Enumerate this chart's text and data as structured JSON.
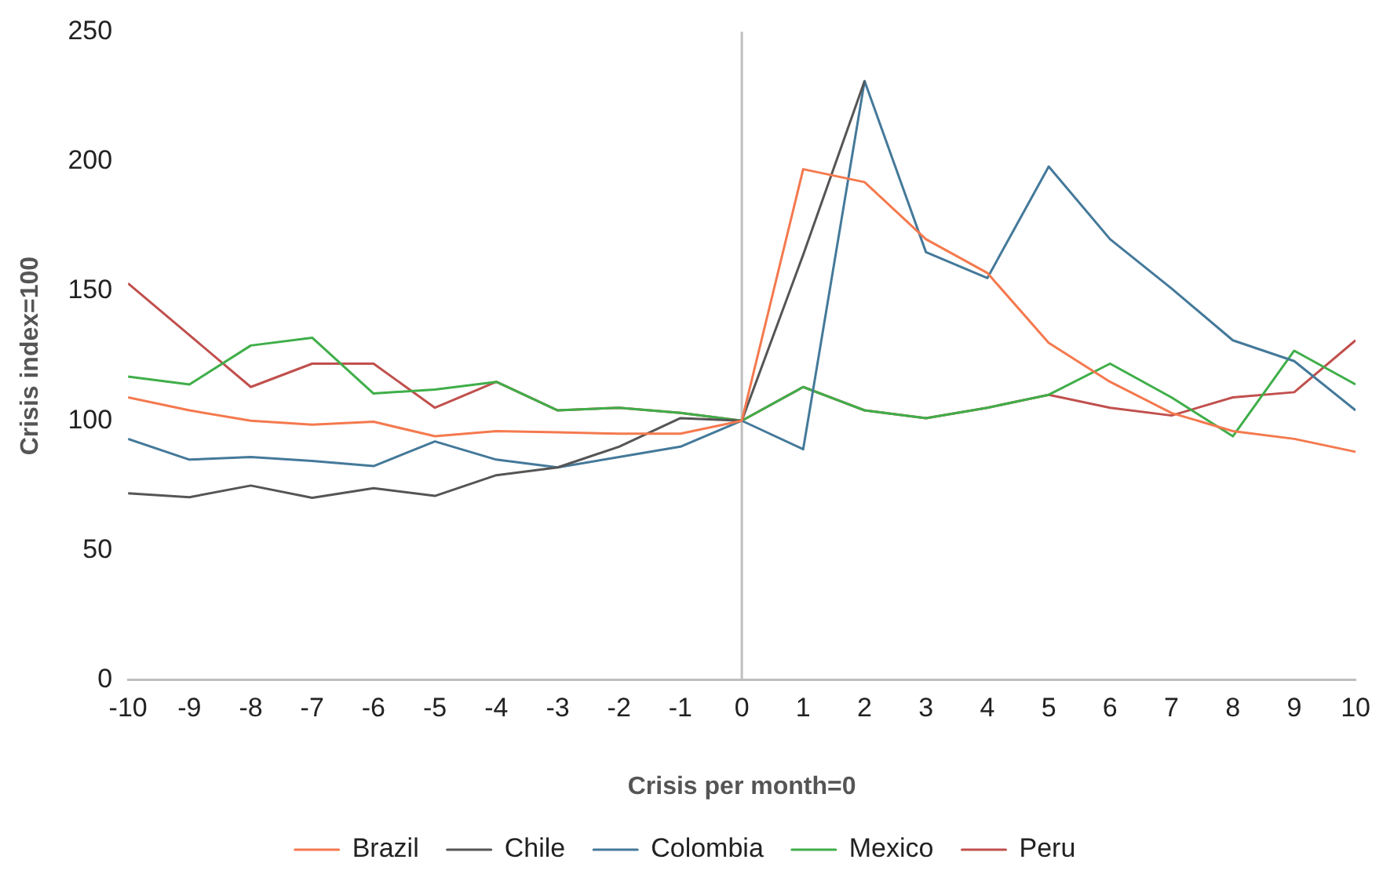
{
  "chart_data": {
    "type": "line",
    "xlabel": "Crisis per month=0",
    "ylabel": "Crisis index=100",
    "x": [
      -10,
      -9,
      -8,
      -7,
      -6,
      -5,
      -4,
      -3,
      -2,
      -1,
      0,
      1,
      2,
      3,
      4,
      5,
      6,
      7,
      8,
      9,
      10
    ],
    "xlim": [
      -10,
      10
    ],
    "xticks": [
      -10,
      -9,
      -8,
      -7,
      -6,
      -5,
      -4,
      -3,
      -2,
      -1,
      0,
      1,
      2,
      3,
      4,
      5,
      6,
      7,
      8,
      9,
      10
    ],
    "ylim": [
      0,
      250
    ],
    "yticks": [
      0,
      50,
      100,
      150,
      200,
      250
    ],
    "grid": false,
    "legend": "bottom",
    "marker": "none",
    "line_style": "solid",
    "ref_lines": [
      {
        "axis": "x",
        "value": 0,
        "color": "#bfbfbf"
      }
    ],
    "series": [
      {
        "name": "Brazil",
        "color": "#f4794e",
        "values": [
          109,
          104,
          100,
          98.5,
          99.6,
          94,
          96,
          95.5,
          95,
          95,
          100,
          197,
          192,
          170,
          157,
          130,
          115,
          103,
          96,
          93,
          88
        ]
      },
      {
        "name": "Chile",
        "color": "#555555",
        "values": [
          72,
          70.5,
          75,
          70.3,
          74,
          71,
          79,
          82,
          90,
          101,
          100,
          164,
          231,
          null,
          null,
          null,
          null,
          null,
          null,
          null,
          null
        ]
      },
      {
        "name": "Colombia",
        "color": "#44799a",
        "values": [
          93,
          85,
          86,
          84.5,
          82.5,
          92,
          85,
          82,
          86,
          90,
          100,
          89,
          231,
          165,
          155,
          198,
          170,
          151,
          131,
          123,
          104
        ]
      },
      {
        "name": "Mexico",
        "color": "#3fae49",
        "values": [
          117,
          114,
          129,
          132,
          110.5,
          112,
          115,
          104,
          105,
          103,
          100,
          113,
          104,
          101,
          105,
          110,
          122,
          109,
          94,
          127,
          114
        ]
      },
      {
        "name": "Peru",
        "color": "#c0504d",
        "values": [
          153,
          133,
          113,
          122,
          122,
          105,
          115,
          104,
          105,
          103,
          100,
          113,
          104,
          101,
          105,
          110,
          105,
          102,
          109,
          111,
          131
        ]
      }
    ]
  }
}
